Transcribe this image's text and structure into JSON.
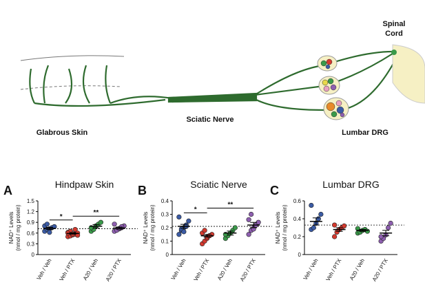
{
  "diagram": {
    "spinal_cord": [
      "Spinal",
      "Cord"
    ],
    "sciatic_nerve": "Sciatic Nerve",
    "glabrous_skin": "Glabrous Skin",
    "lumbar_drg": "Lumbar DRG"
  },
  "chart_data": [
    {
      "type": "dot",
      "letter": "A",
      "title": "Hindpaw Skin",
      "y_label": [
        "NAD⁺ Levels",
        "(nmol / mg protein)"
      ],
      "categories": [
        "Veh / Veh",
        "Veh / PTX",
        "A20 / Veh",
        "A20 / PTX"
      ],
      "colors": [
        "#3b5ba5",
        "#d43a2f",
        "#3a9a4a",
        "#8e5fb0"
      ],
      "points": [
        [
          0.65,
          0.7,
          0.72,
          0.75,
          0.78,
          0.8,
          0.85,
          0.62
        ],
        [
          0.5,
          0.52,
          0.55,
          0.57,
          0.6,
          0.62,
          0.65,
          0.58,
          0.7,
          0.54,
          0.6
        ],
        [
          0.65,
          0.7,
          0.8,
          0.85,
          0.9,
          0.75
        ],
        [
          0.65,
          0.7,
          0.72,
          0.75,
          0.8,
          0.85,
          0.68,
          0.73,
          0.78
        ]
      ],
      "means": [
        0.73,
        0.59,
        0.79,
        0.74
      ],
      "errors": [
        0.03,
        0.02,
        0.05,
        0.03
      ],
      "reference_line": 0.72,
      "significance": [
        {
          "from": 0,
          "to": 1,
          "label": "*"
        },
        {
          "from": 1,
          "to": 3,
          "label": "**"
        }
      ],
      "ylim": [
        0,
        1.5
      ],
      "yticks": [
        0,
        0.3,
        0.6,
        0.9,
        1.2,
        1.5
      ]
    },
    {
      "type": "dot",
      "letter": "B",
      "title": "Sciatic Nerve",
      "y_label": [
        "NAD⁺ Levels",
        "(nmol / mg protein)"
      ],
      "categories": [
        "Veh / Veh",
        "Veh / PTX",
        "A20 / Veh",
        "A20 / PTX"
      ],
      "colors": [
        "#3b5ba5",
        "#d43a2f",
        "#3a9a4a",
        "#8e5fb0"
      ],
      "points": [
        [
          0.15,
          0.18,
          0.2,
          0.22,
          0.25,
          0.28,
          0.19,
          0.17,
          0.21
        ],
        [
          0.08,
          0.1,
          0.12,
          0.14,
          0.15,
          0.16,
          0.18,
          0.13,
          0.14
        ],
        [
          0.12,
          0.14,
          0.16,
          0.18,
          0.2,
          0.15
        ],
        [
          0.15,
          0.18,
          0.2,
          0.22,
          0.24,
          0.26,
          0.3,
          0.19
        ]
      ],
      "means": [
        0.21,
        0.14,
        0.16,
        0.22
      ],
      "errors": [
        0.015,
        0.01,
        0.015,
        0.02
      ],
      "reference_line": 0.21,
      "significance": [
        {
          "from": 0,
          "to": 1,
          "label": "*"
        },
        {
          "from": 1,
          "to": 3,
          "label": "**"
        }
      ],
      "ylim": [
        0,
        0.4
      ],
      "yticks": [
        0,
        0.1,
        0.2,
        0.3,
        0.4
      ]
    },
    {
      "type": "dot",
      "letter": "C",
      "title": "Lumbar DRG",
      "y_label": [
        "NAD⁺ Levels",
        "(nmol / mg protein)"
      ],
      "categories": [
        "Veh / Veh",
        "Veh / PTX",
        "A20 / Veh",
        "A20 / PTX"
      ],
      "colors": [
        "#3b5ba5",
        "#d43a2f",
        "#3a9a4a",
        "#8e5fb0"
      ],
      "points": [
        [
          0.28,
          0.3,
          0.35,
          0.4,
          0.45,
          0.55
        ],
        [
          0.2,
          0.25,
          0.28,
          0.3,
          0.32,
          0.33
        ],
        [
          0.24,
          0.25,
          0.27,
          0.28,
          0.26,
          0.29
        ],
        [
          0.15,
          0.18,
          0.22,
          0.3,
          0.35,
          0.2
        ]
      ],
      "means": [
        0.37,
        0.28,
        0.27,
        0.24
      ],
      "errors": [
        0.04,
        0.02,
        0.01,
        0.03
      ],
      "reference_line": 0.33,
      "significance": [],
      "ylim": [
        0,
        0.6
      ],
      "yticks": [
        0,
        0.2,
        0.4,
        0.6
      ]
    }
  ]
}
